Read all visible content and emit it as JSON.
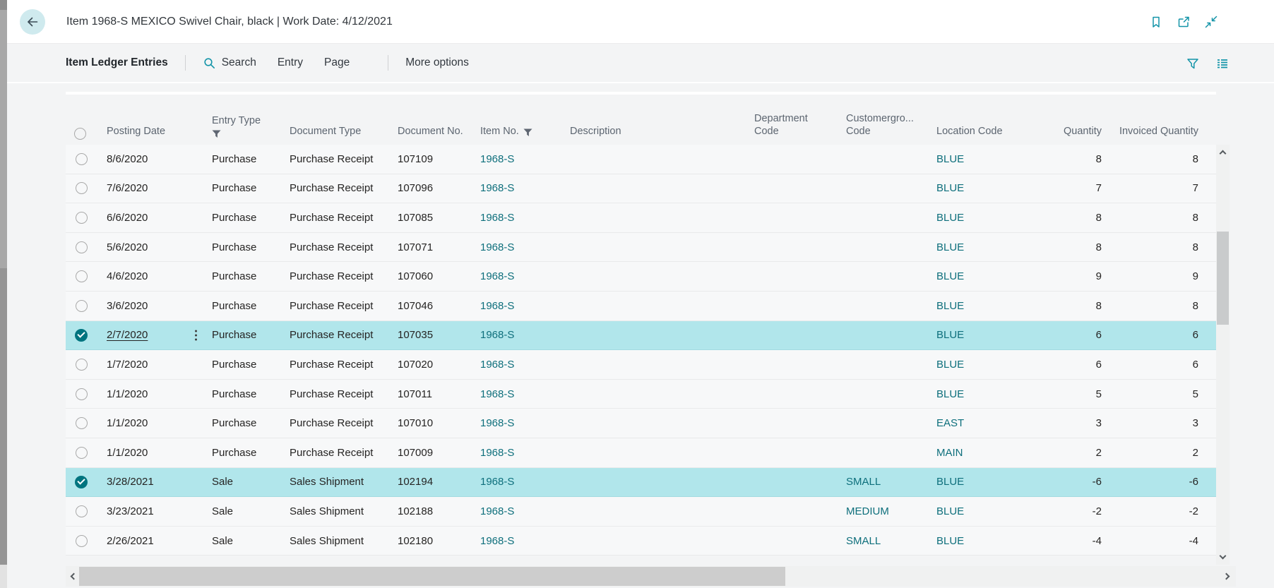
{
  "app": {
    "title": "Item 1968-S MEXICO Swivel Chair, black | Work Date: 4/12/2021"
  },
  "toolbar": {
    "caption": "Item Ledger Entries",
    "search_label": "Search",
    "menu_items": [
      "Entry",
      "Page"
    ],
    "more_options_label": "More options"
  },
  "icons": {
    "topbar": [
      "back-arrow",
      "bookmark",
      "open-in-new-window",
      "collapse"
    ],
    "toolbar": [
      "search-magnifier",
      "filter-funnel",
      "choose-view-list"
    ],
    "header_filtered_columns": [
      "entry_type",
      "item_no"
    ]
  },
  "colors": {
    "accent_teal": "#1394a8",
    "link_teal": "#0e6f7c",
    "selection_bg": "#b1e6eb",
    "selected_check": "#00747f"
  },
  "table": {
    "columns": [
      {
        "id": "posting_date",
        "label": "Posting Date",
        "filter": null,
        "align": "left"
      },
      {
        "id": "entry_type",
        "label": "Entry Type",
        "filter": "below",
        "align": "left"
      },
      {
        "id": "document_type",
        "label": "Document Type",
        "filter": null,
        "align": "left"
      },
      {
        "id": "document_no",
        "label": "Document No.",
        "filter": null,
        "align": "left"
      },
      {
        "id": "item_no",
        "label": "Item No.",
        "filter": "inline",
        "align": "left"
      },
      {
        "id": "description",
        "label": "Description",
        "filter": null,
        "align": "left"
      },
      {
        "id": "department_code",
        "label": "Department Code",
        "filter": null,
        "align": "left"
      },
      {
        "id": "customergroup_code",
        "label": "Customergro... Code",
        "filter": null,
        "align": "left"
      },
      {
        "id": "location_code",
        "label": "Location Code",
        "filter": null,
        "align": "left"
      },
      {
        "id": "quantity",
        "label": "Quantity",
        "filter": null,
        "align": "right"
      },
      {
        "id": "invoiced_quantity",
        "label": "Invoiced Quantity",
        "filter": null,
        "align": "right"
      }
    ],
    "rows": [
      {
        "posting_date": "8/6/2020",
        "entry_type": "Purchase",
        "document_type": "Purchase Receipt",
        "document_no": "107109",
        "item_no": "1968-S",
        "description": "",
        "department_code": "",
        "customergroup_code": "",
        "location_code": "BLUE",
        "quantity": "8",
        "invoiced_quantity": "8",
        "selected": false,
        "focused": false
      },
      {
        "posting_date": "7/6/2020",
        "entry_type": "Purchase",
        "document_type": "Purchase Receipt",
        "document_no": "107096",
        "item_no": "1968-S",
        "description": "",
        "department_code": "",
        "customergroup_code": "",
        "location_code": "BLUE",
        "quantity": "7",
        "invoiced_quantity": "7",
        "selected": false,
        "focused": false
      },
      {
        "posting_date": "6/6/2020",
        "entry_type": "Purchase",
        "document_type": "Purchase Receipt",
        "document_no": "107085",
        "item_no": "1968-S",
        "description": "",
        "department_code": "",
        "customergroup_code": "",
        "location_code": "BLUE",
        "quantity": "8",
        "invoiced_quantity": "8",
        "selected": false,
        "focused": false
      },
      {
        "posting_date": "5/6/2020",
        "entry_type": "Purchase",
        "document_type": "Purchase Receipt",
        "document_no": "107071",
        "item_no": "1968-S",
        "description": "",
        "department_code": "",
        "customergroup_code": "",
        "location_code": "BLUE",
        "quantity": "8",
        "invoiced_quantity": "8",
        "selected": false,
        "focused": false
      },
      {
        "posting_date": "4/6/2020",
        "entry_type": "Purchase",
        "document_type": "Purchase Receipt",
        "document_no": "107060",
        "item_no": "1968-S",
        "description": "",
        "department_code": "",
        "customergroup_code": "",
        "location_code": "BLUE",
        "quantity": "9",
        "invoiced_quantity": "9",
        "selected": false,
        "focused": false
      },
      {
        "posting_date": "3/6/2020",
        "entry_type": "Purchase",
        "document_type": "Purchase Receipt",
        "document_no": "107046",
        "item_no": "1968-S",
        "description": "",
        "department_code": "",
        "customergroup_code": "",
        "location_code": "BLUE",
        "quantity": "8",
        "invoiced_quantity": "8",
        "selected": false,
        "focused": false
      },
      {
        "posting_date": "2/7/2020",
        "entry_type": "Purchase",
        "document_type": "Purchase Receipt",
        "document_no": "107035",
        "item_no": "1968-S",
        "description": "",
        "department_code": "",
        "customergroup_code": "",
        "location_code": "BLUE",
        "quantity": "6",
        "invoiced_quantity": "6",
        "selected": true,
        "focused": true
      },
      {
        "posting_date": "1/7/2020",
        "entry_type": "Purchase",
        "document_type": "Purchase Receipt",
        "document_no": "107020",
        "item_no": "1968-S",
        "description": "",
        "department_code": "",
        "customergroup_code": "",
        "location_code": "BLUE",
        "quantity": "6",
        "invoiced_quantity": "6",
        "selected": false,
        "focused": false
      },
      {
        "posting_date": "1/1/2020",
        "entry_type": "Purchase",
        "document_type": "Purchase Receipt",
        "document_no": "107011",
        "item_no": "1968-S",
        "description": "",
        "department_code": "",
        "customergroup_code": "",
        "location_code": "BLUE",
        "quantity": "5",
        "invoiced_quantity": "5",
        "selected": false,
        "focused": false
      },
      {
        "posting_date": "1/1/2020",
        "entry_type": "Purchase",
        "document_type": "Purchase Receipt",
        "document_no": "107010",
        "item_no": "1968-S",
        "description": "",
        "department_code": "",
        "customergroup_code": "",
        "location_code": "EAST",
        "quantity": "3",
        "invoiced_quantity": "3",
        "selected": false,
        "focused": false
      },
      {
        "posting_date": "1/1/2020",
        "entry_type": "Purchase",
        "document_type": "Purchase Receipt",
        "document_no": "107009",
        "item_no": "1968-S",
        "description": "",
        "department_code": "",
        "customergroup_code": "",
        "location_code": "MAIN",
        "quantity": "2",
        "invoiced_quantity": "2",
        "selected": false,
        "focused": false
      },
      {
        "posting_date": "3/28/2021",
        "entry_type": "Sale",
        "document_type": "Sales Shipment",
        "document_no": "102194",
        "item_no": "1968-S",
        "description": "",
        "department_code": "",
        "customergroup_code": "SMALL",
        "location_code": "BLUE",
        "quantity": "-6",
        "invoiced_quantity": "-6",
        "selected": true,
        "focused": false
      },
      {
        "posting_date": "3/23/2021",
        "entry_type": "Sale",
        "document_type": "Sales Shipment",
        "document_no": "102188",
        "item_no": "1968-S",
        "description": "",
        "department_code": "",
        "customergroup_code": "MEDIUM",
        "location_code": "BLUE",
        "quantity": "-2",
        "invoiced_quantity": "-2",
        "selected": false,
        "focused": false
      },
      {
        "posting_date": "2/26/2021",
        "entry_type": "Sale",
        "document_type": "Sales Shipment",
        "document_no": "102180",
        "item_no": "1968-S",
        "description": "",
        "department_code": "",
        "customergroup_code": "SMALL",
        "location_code": "BLUE",
        "quantity": "-4",
        "invoiced_quantity": "-4",
        "selected": false,
        "focused": false
      }
    ]
  }
}
